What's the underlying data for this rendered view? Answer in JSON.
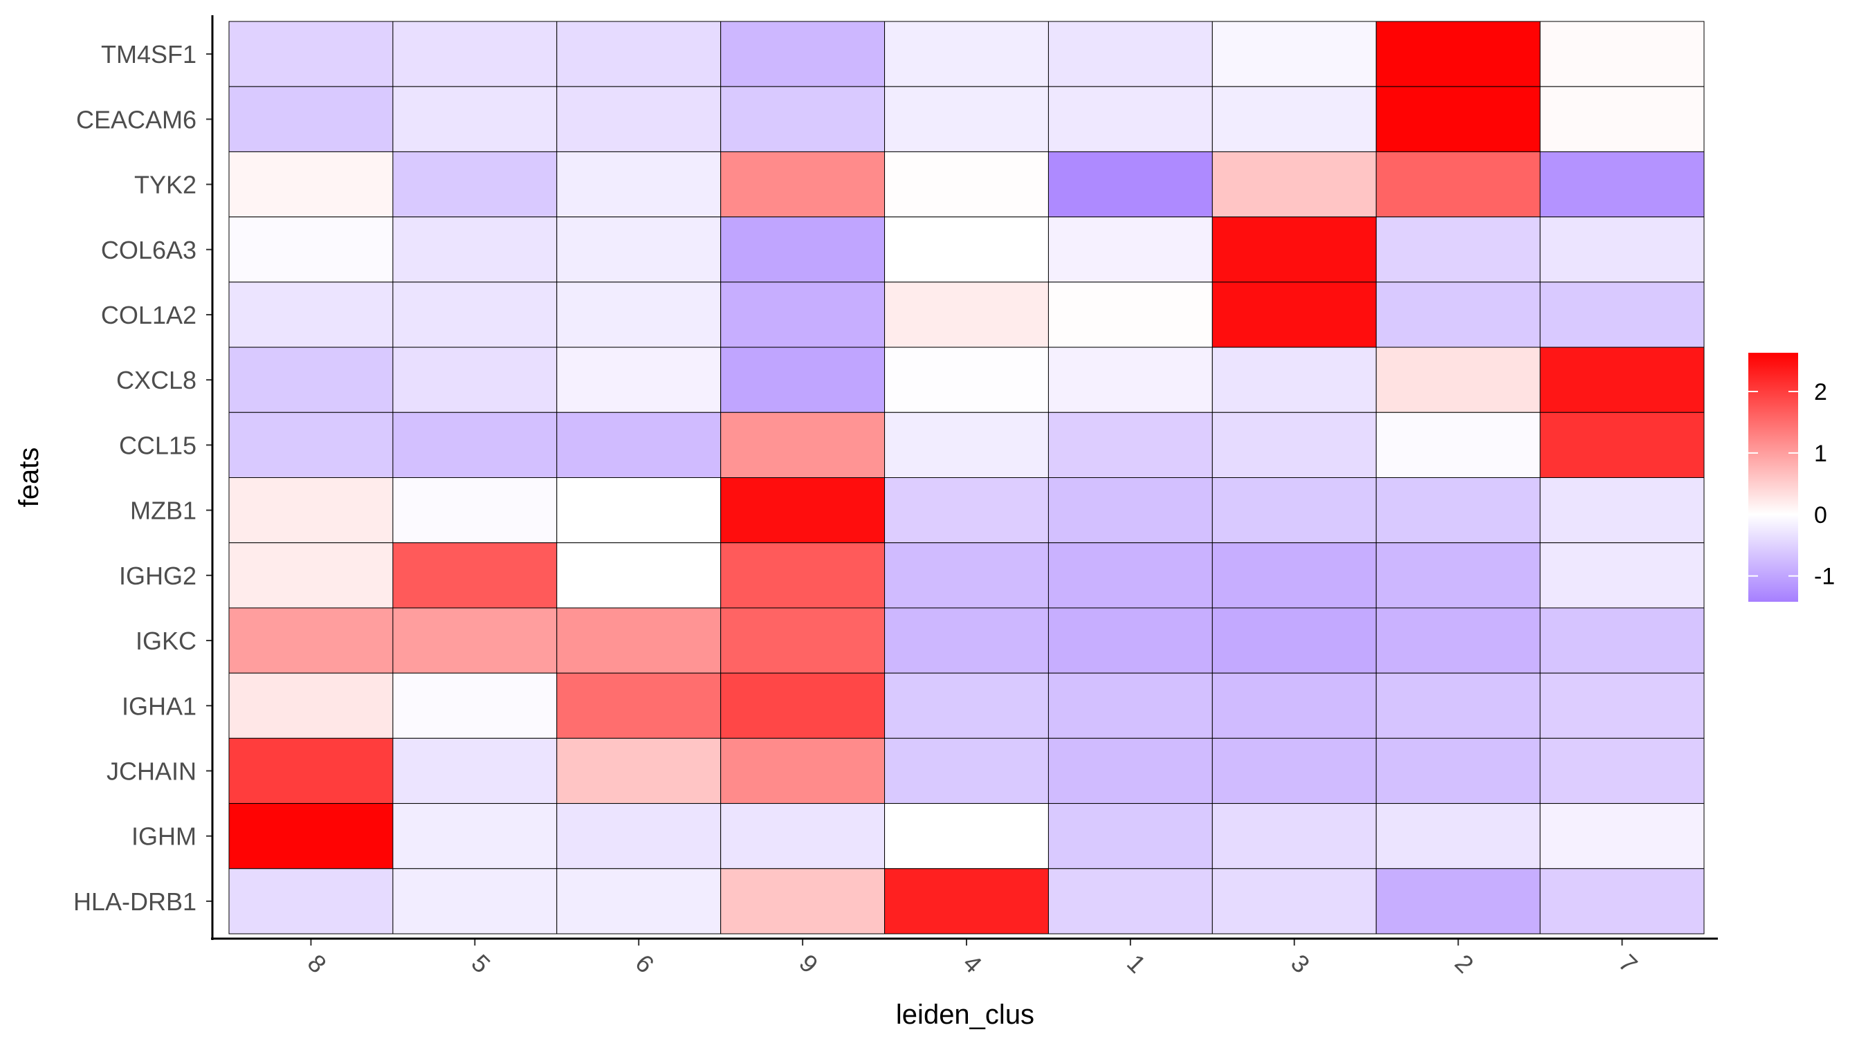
{
  "chart_data": {
    "type": "heatmap",
    "title": "",
    "xlabel": "leiden_clus",
    "ylabel": "feats",
    "x_categories": [
      "8",
      "5",
      "6",
      "9",
      "4",
      "1",
      "3",
      "2",
      "7"
    ],
    "y_categories": [
      "TM4SF1",
      "CEACAM6",
      "TYK2",
      "COL6A3",
      "COL1A2",
      "CXCL8",
      "CCL15",
      "MZB1",
      "IGHG2",
      "IGKC",
      "IGHA1",
      "JCHAIN",
      "IGHM",
      "HLA-DRB1"
    ],
    "values": [
      [
        -0.5,
        -0.35,
        -0.4,
        -0.8,
        -0.2,
        -0.3,
        -0.1,
        2.6,
        0.05
      ],
      [
        -0.6,
        -0.3,
        -0.35,
        -0.6,
        -0.2,
        -0.25,
        -0.2,
        2.6,
        0.05
      ],
      [
        0.1,
        -0.6,
        -0.2,
        1.2,
        0.02,
        -1.3,
        0.6,
        1.6,
        -1.2
      ],
      [
        -0.05,
        -0.3,
        -0.2,
        -1.0,
        0.0,
        -0.15,
        2.5,
        -0.5,
        -0.3
      ],
      [
        -0.3,
        -0.3,
        -0.2,
        -0.9,
        0.2,
        0.02,
        2.5,
        -0.6,
        -0.6
      ],
      [
        -0.6,
        -0.35,
        -0.15,
        -1.0,
        -0.02,
        -0.15,
        -0.3,
        0.3,
        2.4
      ],
      [
        -0.6,
        -0.7,
        -0.75,
        1.1,
        -0.2,
        -0.55,
        -0.4,
        -0.05,
        2.1
      ],
      [
        0.2,
        -0.05,
        0.0,
        2.5,
        -0.55,
        -0.7,
        -0.6,
        -0.6,
        -0.3
      ],
      [
        0.2,
        1.7,
        0.0,
        1.7,
        -0.75,
        -0.85,
        -0.9,
        -0.8,
        -0.25
      ],
      [
        1.0,
        1.0,
        1.1,
        1.6,
        -0.8,
        -0.9,
        -0.95,
        -0.85,
        -0.65
      ],
      [
        0.25,
        -0.05,
        1.5,
        1.9,
        -0.6,
        -0.7,
        -0.75,
        -0.65,
        -0.55
      ],
      [
        2.0,
        -0.3,
        0.6,
        1.2,
        -0.6,
        -0.75,
        -0.75,
        -0.7,
        -0.55
      ],
      [
        2.6,
        -0.2,
        -0.3,
        -0.3,
        0.0,
        -0.6,
        -0.4,
        -0.3,
        -0.15
      ],
      [
        -0.4,
        -0.2,
        -0.2,
        0.6,
        2.3,
        -0.5,
        -0.4,
        -0.9,
        -0.55
      ]
    ],
    "color_scale": {
      "low": "#a67fff",
      "mid": "#ffffff",
      "high": "#ff0000",
      "limits": [
        -1.42,
        2.63
      ]
    },
    "legend": {
      "position": "right",
      "ticks": [
        2,
        1,
        0,
        -1
      ],
      "tick_labels": [
        "2",
        "1",
        "0",
        "-1"
      ]
    }
  }
}
